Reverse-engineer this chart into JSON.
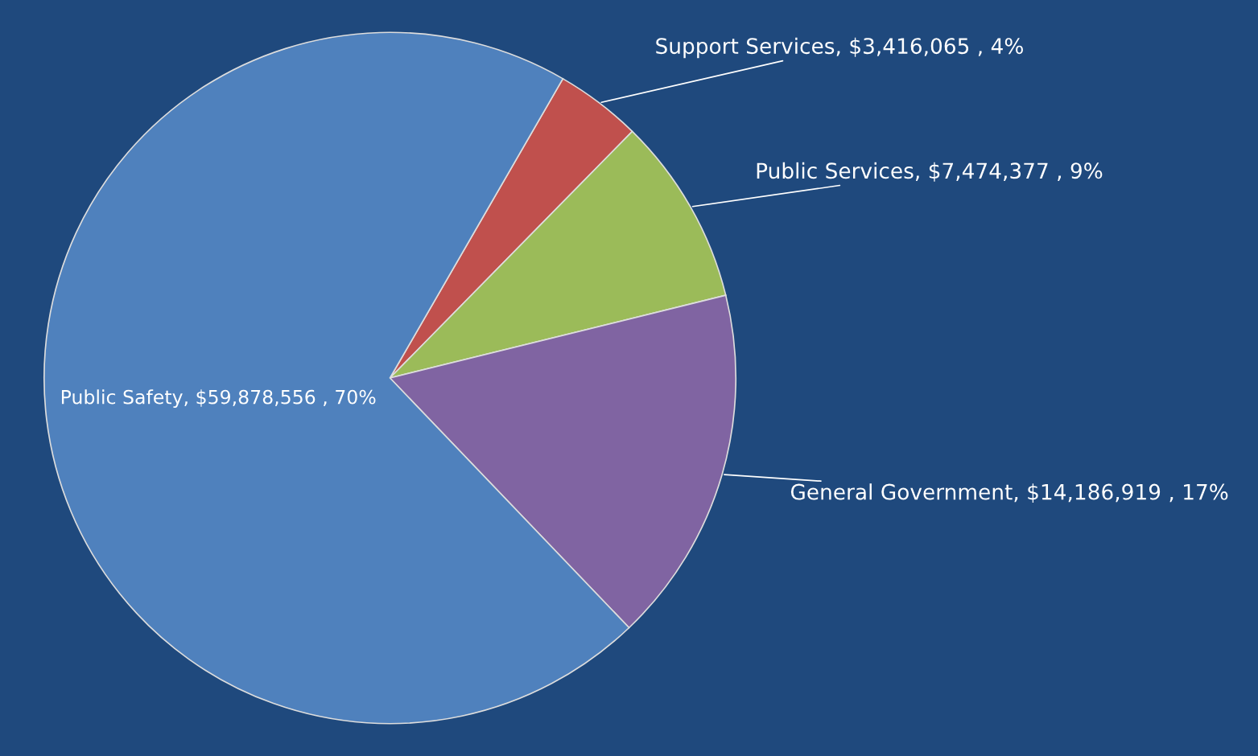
{
  "chart_data": {
    "type": "pie",
    "categories": [
      "Support Services",
      "Public Services",
      "General Government",
      "Public Safety"
    ],
    "values": [
      3416065,
      7474377,
      14186919,
      59878556
    ],
    "value_labels": [
      "$3,416,065 , 4%",
      "$7,474,377 , 9%",
      "$14,186,919 , 17%",
      "$59,878,556 , 70%"
    ],
    "colors": [
      "#c0504d",
      "#9bbb59",
      "#8064a2",
      "#4f81bd"
    ]
  }
}
